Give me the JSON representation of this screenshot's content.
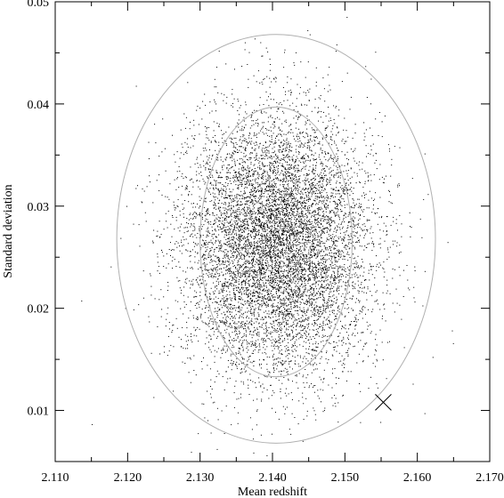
{
  "chart_data": {
    "type": "scatter",
    "xlabel": "Mean redshift",
    "ylabel": "Standard deviation",
    "xlim": [
      2.11,
      2.17
    ],
    "ylim": [
      0.005,
      0.05
    ],
    "x_ticks": [
      "2.110",
      "2.120",
      "2.130",
      "2.140",
      "2.150",
      "2.160",
      "2.170"
    ],
    "y_ticks": [
      "0.01",
      "0.02",
      "0.03",
      "0.04",
      "0.05"
    ],
    "grid": false,
    "cloud": {
      "n_points": 9000,
      "center_x": 2.1405,
      "center_y": 0.0263,
      "sigma_x": 0.0065,
      "sigma_y": 0.0063
    },
    "contours": [
      {
        "name": "1-sigma",
        "center_x": 2.1405,
        "center_y": 0.0265,
        "radius_x": 0.0105,
        "radius_y": 0.0132
      },
      {
        "name": "2-sigma",
        "center_x": 2.1405,
        "center_y": 0.0268,
        "radius_x": 0.022,
        "radius_y": 0.02
      }
    ],
    "marker": {
      "symbol": "x",
      "x": 2.1553,
      "y": 0.0108
    },
    "colors": {
      "points": "#000000",
      "contours": "#b0b0b0",
      "axes": "#000000"
    }
  }
}
